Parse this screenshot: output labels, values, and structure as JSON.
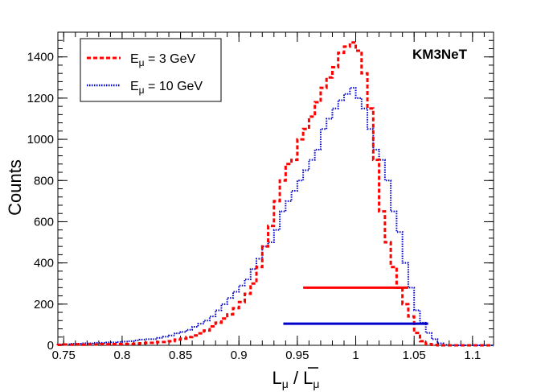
{
  "chart_data": {
    "type": "histogram",
    "title": "",
    "xlabel": "L_μ / L̄_μ",
    "ylabel": "Counts",
    "xlim": [
      0.745,
      1.118
    ],
    "ylim": [
      0,
      1520
    ],
    "x_ticks": [
      0.75,
      0.8,
      0.85,
      0.9,
      0.95,
      1,
      1.05,
      1.1
    ],
    "x_tick_labels": [
      "0.75",
      "0.8",
      "0.85",
      "0.9",
      "0.95",
      "1",
      "1.05",
      "1.1"
    ],
    "y_ticks": [
      0,
      200,
      400,
      600,
      800,
      1000,
      1200,
      1400
    ],
    "y_tick_labels": [
      "0",
      "200",
      "400",
      "600",
      "800",
      "1000",
      "1200",
      "1400"
    ],
    "annotation": "KM3NeT",
    "bin_edges_start": 0.745,
    "bin_width": 0.005,
    "series": [
      {
        "name": "E_μ = 3 GeV",
        "legend_main": "E",
        "legend_sub": "μ",
        "legend_rest": " = 3 GeV",
        "color": "#ff0000",
        "style": "dashed",
        "values": [
          2,
          4,
          3,
          5,
          3,
          5,
          4,
          6,
          5,
          6,
          6,
          7,
          7,
          8,
          10,
          12,
          12,
          16,
          16,
          20,
          28,
          32,
          40,
          48,
          58,
          72,
          92,
          110,
          130,
          150,
          180,
          210,
          250,
          300,
          380,
          480,
          580,
          700,
          800,
          880,
          900,
          1000,
          1050,
          1110,
          1180,
          1250,
          1300,
          1350,
          1420,
          1450,
          1470,
          1430,
          1320,
          1150,
          900,
          650,
          500,
          380,
          280,
          200,
          140,
          60,
          20,
          6,
          2,
          0,
          0,
          0,
          0,
          0,
          0,
          0,
          0,
          0,
          0
        ],
        "interval": [
          0.955,
          1.045
        ],
        "interval_y": 280
      },
      {
        "name": "E_μ = 10 GeV",
        "legend_main": "E",
        "legend_sub": "μ",
        "legend_rest": " = 10 GeV",
        "color": "#0000cc",
        "style": "dotted",
        "values": [
          5,
          6,
          8,
          8,
          10,
          10,
          12,
          12,
          14,
          14,
          16,
          18,
          20,
          24,
          28,
          30,
          30,
          36,
          42,
          48,
          58,
          65,
          75,
          90,
          105,
          120,
          140,
          170,
          200,
          230,
          260,
          290,
          320,
          370,
          420,
          480,
          500,
          560,
          650,
          700,
          750,
          800,
          850,
          900,
          950,
          1050,
          1100,
          1150,
          1190,
          1220,
          1250,
          1200,
          1150,
          1050,
          950,
          900,
          800,
          650,
          550,
          400,
          280,
          170,
          110,
          60,
          30,
          10,
          2,
          0,
          0,
          0,
          0,
          0,
          0,
          0,
          0
        ],
        "interval": [
          0.938,
          1.062
        ],
        "interval_y": 105
      }
    ]
  }
}
